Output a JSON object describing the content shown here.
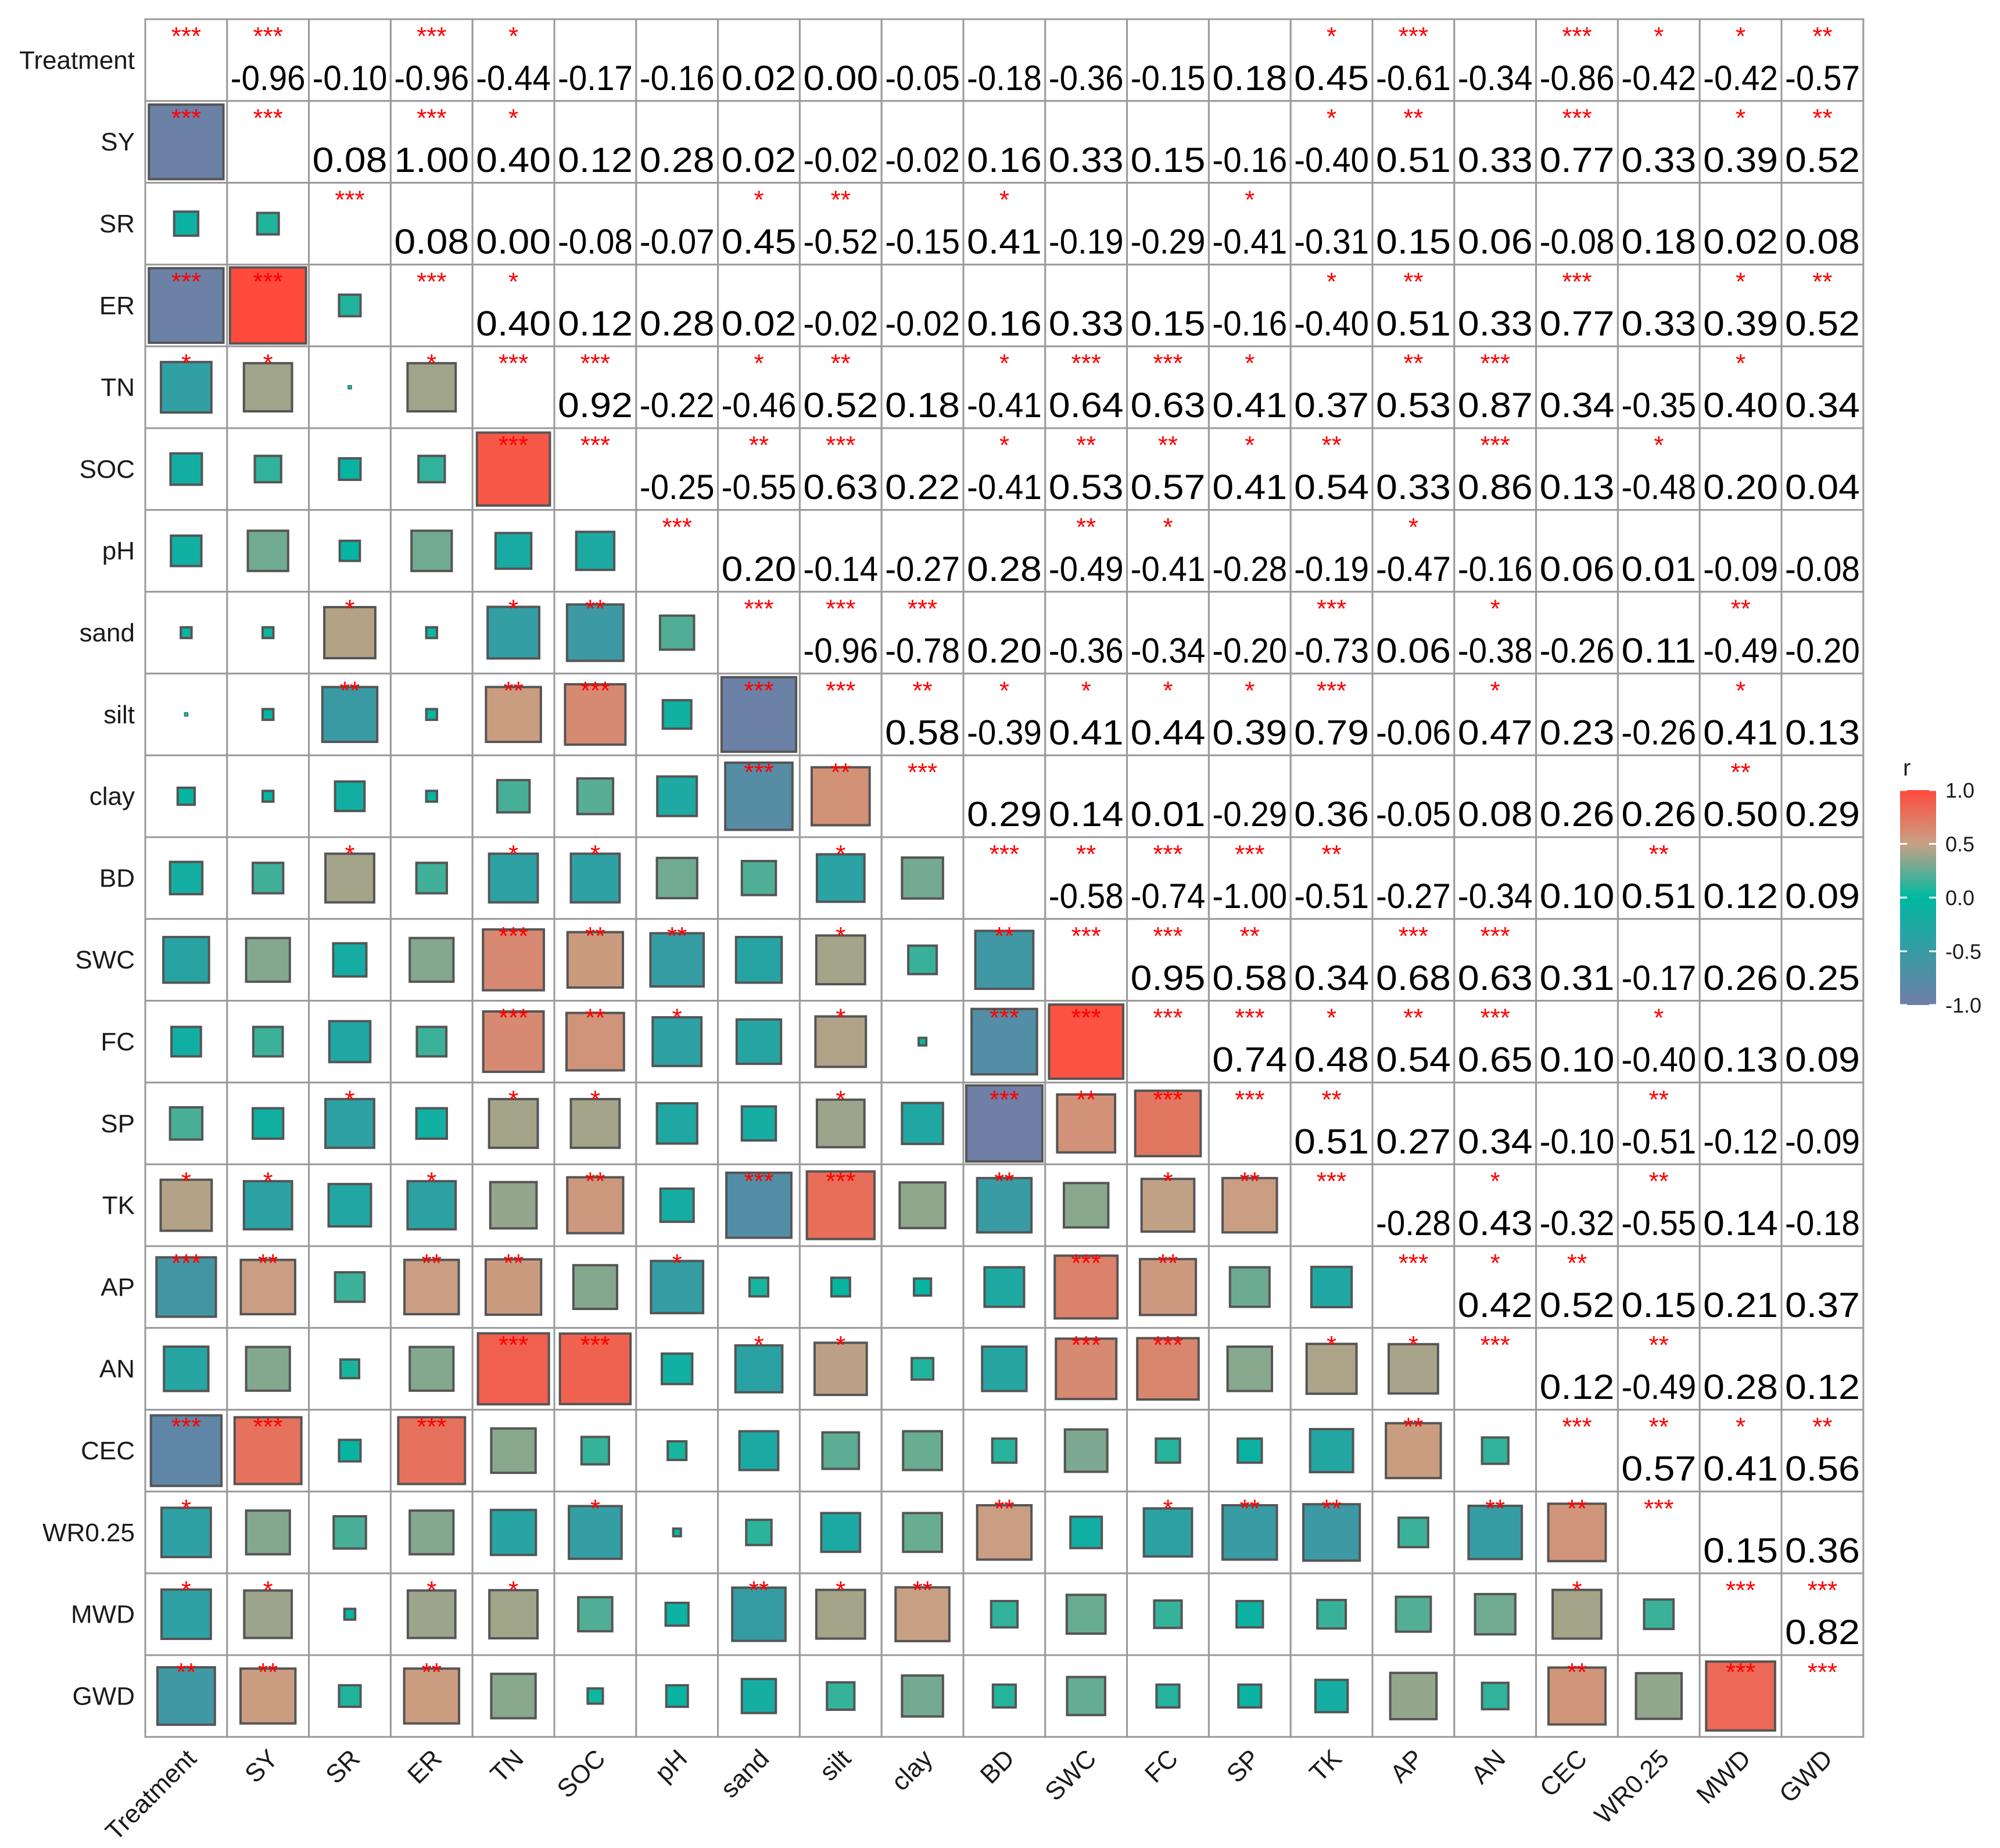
{
  "chart_data": {
    "type": "heatmap",
    "variables": [
      "Treatment",
      "SY",
      "SR",
      "ER",
      "TN",
      "SOC",
      "pH",
      "sand",
      "silt",
      "clay",
      "BD",
      "SWC",
      "FC",
      "SP",
      "TK",
      "AP",
      "AN",
      "CEC",
      "WR0.25",
      "MWD",
      "GWD"
    ],
    "upper_triangle_r": [
      [
        -0.96,
        -0.1,
        -0.96,
        -0.44,
        -0.17,
        -0.16,
        0.02,
        0.0,
        -0.05,
        -0.18,
        -0.36,
        -0.15,
        0.18,
        0.45,
        -0.61,
        -0.34,
        -0.86,
        -0.42,
        -0.42,
        -0.57
      ],
      [
        0.08,
        1.0,
        0.4,
        0.12,
        0.28,
        0.02,
        -0.02,
        -0.02,
        0.16,
        0.33,
        0.15,
        -0.16,
        -0.4,
        0.51,
        0.33,
        0.77,
        0.33,
        0.39,
        0.52
      ],
      [
        0.08,
        0.0,
        -0.08,
        -0.07,
        0.45,
        -0.52,
        -0.15,
        0.41,
        -0.19,
        -0.29,
        -0.41,
        -0.31,
        0.15,
        0.06,
        -0.08,
        0.18,
        0.02,
        0.08
      ],
      [
        0.4,
        0.12,
        0.28,
        0.02,
        -0.02,
        -0.02,
        0.16,
        0.33,
        0.15,
        -0.16,
        -0.4,
        0.51,
        0.33,
        0.77,
        0.33,
        0.39,
        0.52
      ],
      [
        0.92,
        -0.22,
        -0.46,
        0.52,
        0.18,
        -0.41,
        0.64,
        0.63,
        0.41,
        0.37,
        0.53,
        0.87,
        0.34,
        -0.35,
        0.4,
        0.34
      ],
      [
        -0.25,
        -0.55,
        0.63,
        0.22,
        -0.41,
        0.53,
        0.57,
        0.41,
        0.54,
        0.33,
        0.86,
        0.13,
        -0.48,
        0.2,
        0.04
      ],
      [
        0.2,
        -0.14,
        -0.27,
        0.28,
        -0.49,
        -0.41,
        -0.28,
        -0.19,
        -0.47,
        -0.16,
        0.06,
        0.01,
        -0.09,
        -0.08
      ],
      [
        -0.96,
        -0.78,
        0.2,
        -0.36,
        -0.34,
        -0.2,
        -0.73,
        0.06,
        -0.38,
        -0.26,
        0.11,
        -0.49,
        -0.2
      ],
      [
        0.58,
        -0.39,
        0.41,
        0.44,
        0.39,
        0.79,
        -0.06,
        0.47,
        0.23,
        -0.26,
        0.41,
        0.13
      ],
      [
        0.29,
        0.14,
        0.01,
        -0.29,
        0.36,
        -0.05,
        0.08,
        0.26,
        0.26,
        0.5,
        0.29
      ],
      [
        -0.58,
        -0.74,
        -1.0,
        -0.51,
        -0.27,
        -0.34,
        0.1,
        0.51,
        0.12,
        0.09
      ],
      [
        0.95,
        0.58,
        0.34,
        0.68,
        0.63,
        0.31,
        -0.17,
        0.26,
        0.25
      ],
      [
        0.74,
        0.48,
        0.54,
        0.65,
        0.1,
        -0.4,
        0.13,
        0.09
      ],
      [
        0.51,
        0.27,
        0.34,
        -0.1,
        -0.51,
        -0.12,
        -0.09
      ],
      [
        -0.28,
        0.43,
        -0.32,
        -0.55,
        0.14,
        -0.18
      ],
      [
        0.42,
        0.52,
        0.15,
        0.21,
        0.37
      ],
      [
        0.12,
        -0.49,
        0.28,
        0.12
      ],
      [
        0.57,
        0.41,
        0.56
      ],
      [
        0.15,
        0.36
      ],
      [
        0.82
      ]
    ],
    "upper_triangle_stars": [
      [
        "***",
        "",
        "***",
        "*",
        "",
        "",
        "",
        "",
        "",
        "",
        "",
        "",
        "",
        "*",
        "***",
        "",
        "***",
        "*",
        "*",
        "**"
      ],
      [
        "",
        "***",
        "*",
        "",
        "",
        "",
        "",
        "",
        "",
        "",
        "",
        "",
        "*",
        "**",
        "",
        "***",
        "",
        "*",
        "**"
      ],
      [
        "",
        "",
        "",
        "",
        "*",
        "**",
        "",
        "*",
        "",
        "",
        "*",
        "",
        "",
        "",
        "",
        "",
        "",
        ""
      ],
      [
        "*",
        "",
        "",
        "",
        "",
        "",
        "",
        "",
        "",
        "",
        "*",
        "**",
        "",
        "***",
        "",
        "*",
        "**"
      ],
      [
        "***",
        "",
        "*",
        "**",
        "",
        "*",
        "***",
        "***",
        "*",
        "",
        "**",
        "***",
        "",
        "",
        "*",
        ""
      ],
      [
        "",
        "**",
        "***",
        "",
        "*",
        "**",
        "**",
        "*",
        "**",
        "",
        "***",
        "",
        "*",
        "",
        ""
      ],
      [
        "",
        "",
        "",
        "",
        "**",
        "*",
        "",
        "",
        "*",
        "",
        "",
        "",
        "",
        ""
      ],
      [
        "***",
        "***",
        "",
        "",
        "",
        "",
        "***",
        "",
        "*",
        "",
        "",
        "**",
        ""
      ],
      [
        "**",
        "*",
        "*",
        "*",
        "*",
        "***",
        "",
        "*",
        "",
        "",
        "*",
        ""
      ],
      [
        "",
        "",
        "",
        "",
        "",
        "",
        "",
        "",
        "",
        "**",
        ""
      ],
      [
        "**",
        "***",
        "***",
        "**",
        "",
        "",
        "",
        "**",
        "",
        ""
      ],
      [
        "***",
        "**",
        "",
        "***",
        "***",
        "",
        "",
        "",
        ""
      ],
      [
        "***",
        "*",
        "**",
        "***",
        "",
        "*",
        "",
        ""
      ],
      [
        "**",
        "",
        "",
        "",
        "**",
        "",
        ""
      ],
      [
        "",
        "*",
        "",
        "**",
        "",
        ""
      ],
      [
        "*",
        "**",
        "",
        "",
        ""
      ],
      [
        "",
        "**",
        "",
        ""
      ],
      [
        "**",
        "*",
        "**"
      ],
      [
        "",
        ""
      ],
      [
        "***"
      ]
    ],
    "diagonal_stars": "***",
    "lower_triangle": "squares sized and colored by r",
    "upper_triangle": "r values as numbers",
    "color_scale": {
      "min": -1.0,
      "max": 1.0,
      "colors": {
        "-1.0": "#6f7fa6",
        "0.0": "#00b8a2",
        "0.5": "#c8a084",
        "1.0": "#ff4a3c"
      }
    },
    "legend": {
      "title": "r",
      "ticks": [
        "1.0",
        "0.5",
        "0.0",
        "-0.5",
        "-1.0"
      ],
      "placement": "right"
    }
  }
}
